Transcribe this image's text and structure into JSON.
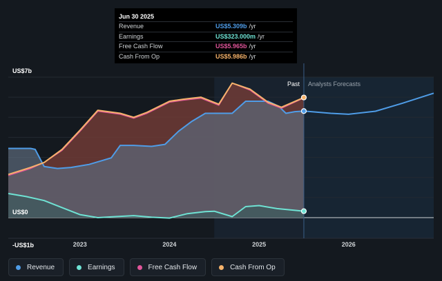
{
  "tooltip": {
    "date": "Jun 30 2025",
    "rows": [
      {
        "label": "Revenue",
        "value": "US$5.309b",
        "unit": "/yr",
        "color": "#4f9de8"
      },
      {
        "label": "Earnings",
        "value": "US$323.000m",
        "unit": "/yr",
        "color": "#6fe3d4"
      },
      {
        "label": "Free Cash Flow",
        "value": "US$5.965b",
        "unit": "/yr",
        "color": "#e0559a"
      },
      {
        "label": "Cash From Op",
        "value": "US$5.986b",
        "unit": "/yr",
        "color": "#f6b36b"
      }
    ]
  },
  "legend": [
    {
      "label": "Revenue",
      "color": "#4f9de8"
    },
    {
      "label": "Earnings",
      "color": "#6fe3d4"
    },
    {
      "label": "Free Cash Flow",
      "color": "#e0559a"
    },
    {
      "label": "Cash From Op",
      "color": "#f6b36b"
    }
  ],
  "chart_data": {
    "type": "area",
    "y_ticks": [
      "US$7b",
      "US$0",
      "-US$1b"
    ],
    "ylim": [
      -1,
      7
    ],
    "x_ticks": [
      {
        "label": "2023",
        "x": 2023.0
      },
      {
        "label": "2024",
        "x": 2024.0
      },
      {
        "label": "2025",
        "x": 2025.0
      },
      {
        "label": "2026",
        "x": 2026.0
      }
    ],
    "xlim": [
      2022.2,
      2026.95
    ],
    "past_start": 2024.5,
    "divider": 2025.5,
    "past_label": "Past",
    "forecast_label": "Analysts Forecasts",
    "series": [
      {
        "name": "Revenue",
        "color": "#4f9de8",
        "points": [
          [
            2022.2,
            3.45
          ],
          [
            2022.45,
            3.45
          ],
          [
            2022.5,
            3.4
          ],
          [
            2022.6,
            2.55
          ],
          [
            2022.75,
            2.45
          ],
          [
            2022.9,
            2.5
          ],
          [
            2023.1,
            2.65
          ],
          [
            2023.35,
            2.98
          ],
          [
            2023.45,
            3.6
          ],
          [
            2023.6,
            3.6
          ],
          [
            2023.8,
            3.55
          ],
          [
            2023.95,
            3.65
          ],
          [
            2024.1,
            4.3
          ],
          [
            2024.25,
            4.8
          ],
          [
            2024.4,
            5.2
          ],
          [
            2024.6,
            5.2
          ],
          [
            2024.7,
            5.2
          ],
          [
            2024.85,
            5.8
          ],
          [
            2025.1,
            5.8
          ],
          [
            2025.22,
            5.55
          ],
          [
            2025.3,
            5.2
          ],
          [
            2025.4,
            5.28
          ],
          [
            2025.5,
            5.309
          ]
        ]
      },
      {
        "name": "Earnings",
        "color": "#6fe3d4",
        "points": [
          [
            2022.2,
            1.2
          ],
          [
            2022.4,
            1.05
          ],
          [
            2022.6,
            0.85
          ],
          [
            2022.8,
            0.5
          ],
          [
            2023.0,
            0.15
          ],
          [
            2023.2,
            0.0
          ],
          [
            2023.4,
            0.05
          ],
          [
            2023.6,
            0.1
          ],
          [
            2023.8,
            0.02
          ],
          [
            2024.0,
            -0.02
          ],
          [
            2024.2,
            0.2
          ],
          [
            2024.4,
            0.3
          ],
          [
            2024.5,
            0.32
          ],
          [
            2024.7,
            0.05
          ],
          [
            2024.85,
            0.55
          ],
          [
            2025.0,
            0.6
          ],
          [
            2025.2,
            0.45
          ],
          [
            2025.5,
            0.323
          ]
        ]
      },
      {
        "name": "Free Cash Flow",
        "color": "#e0559a",
        "points": [
          [
            2022.2,
            2.1
          ],
          [
            2022.45,
            2.45
          ],
          [
            2022.6,
            2.75
          ],
          [
            2022.8,
            3.35
          ],
          [
            2023.0,
            4.3
          ],
          [
            2023.2,
            5.3
          ],
          [
            2023.45,
            5.15
          ],
          [
            2023.6,
            4.95
          ],
          [
            2023.75,
            5.2
          ],
          [
            2024.0,
            5.75
          ],
          [
            2024.15,
            5.85
          ],
          [
            2024.35,
            5.95
          ],
          [
            2024.55,
            5.6
          ],
          [
            2024.7,
            6.7
          ],
          [
            2024.9,
            6.35
          ],
          [
            2025.1,
            5.7
          ],
          [
            2025.25,
            5.45
          ],
          [
            2025.5,
            5.965
          ]
        ]
      },
      {
        "name": "Cash From Op",
        "color": "#f6b36b",
        "points": [
          [
            2022.2,
            2.15
          ],
          [
            2022.45,
            2.5
          ],
          [
            2022.6,
            2.75
          ],
          [
            2022.8,
            3.4
          ],
          [
            2023.0,
            4.35
          ],
          [
            2023.2,
            5.35
          ],
          [
            2023.45,
            5.2
          ],
          [
            2023.6,
            5.0
          ],
          [
            2023.75,
            5.25
          ],
          [
            2024.0,
            5.8
          ],
          [
            2024.15,
            5.9
          ],
          [
            2024.35,
            6.0
          ],
          [
            2024.55,
            5.65
          ],
          [
            2024.7,
            6.7
          ],
          [
            2024.9,
            6.4
          ],
          [
            2025.1,
            5.75
          ],
          [
            2025.25,
            5.5
          ],
          [
            2025.5,
            5.986
          ]
        ]
      },
      {
        "name": "Revenue",
        "color": "#4f9de8",
        "points": [
          [
            2025.5,
            5.309
          ],
          [
            2025.8,
            5.2
          ],
          [
            2026.0,
            5.15
          ],
          [
            2026.3,
            5.3
          ],
          [
            2026.6,
            5.7
          ],
          [
            2026.95,
            6.2
          ]
        ]
      }
    ]
  }
}
